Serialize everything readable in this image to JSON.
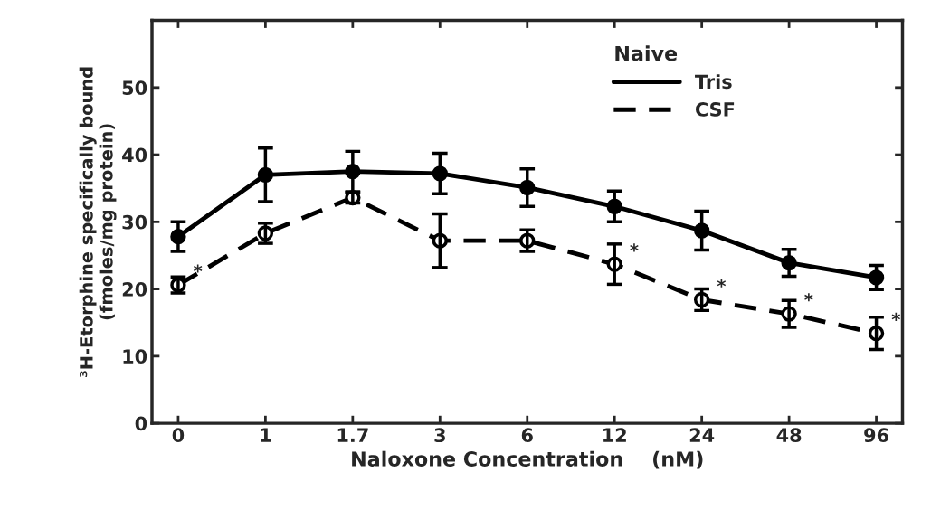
{
  "chart_data": {
    "type": "line",
    "xlabel": "Naloxone Concentration    (nM)",
    "ylabel": "³H-Etorphine specifically bound\n(fmoles/mg protein)",
    "legend_title": "Naive",
    "categories": [
      "0",
      "1",
      "1.7",
      "3",
      "6",
      "12",
      "24",
      "48",
      "96"
    ],
    "series": [
      {
        "name": "Tris",
        "color": "#000000",
        "line_style": "solid",
        "values": [
          27.8,
          37.0,
          37.5,
          37.2,
          35.1,
          32.3,
          28.7,
          23.9,
          21.7
        ],
        "errors": [
          2.2,
          4,
          3,
          3,
          2.8,
          2.3,
          2.9,
          2,
          1.8
        ]
      },
      {
        "name": "CSF",
        "color": "#000000",
        "line_style": "dashed",
        "values": [
          20.6,
          28.3,
          33.6,
          27.2,
          27.2,
          23.7,
          18.4,
          16.3,
          13.4
        ],
        "errors": [
          1.2,
          1.5,
          0.8,
          4,
          1.6,
          3,
          1.6,
          2,
          2.4
        ]
      }
    ],
    "annotations": [
      {
        "text": "*",
        "x": "0",
        "y": 20.6
      },
      {
        "text": "*",
        "x": "12",
        "y": 23.7
      },
      {
        "text": "*",
        "x": "24",
        "y": 18.4
      },
      {
        "text": "*",
        "x": "48",
        "y": 16.3
      },
      {
        "text": "*",
        "x": "96",
        "y": 13.4
      }
    ],
    "ylim": [
      0,
      60
    ],
    "yticks": [
      0,
      10,
      20,
      30,
      40,
      50
    ],
    "grid": false,
    "legend": "top right",
    "marker": "circle"
  }
}
